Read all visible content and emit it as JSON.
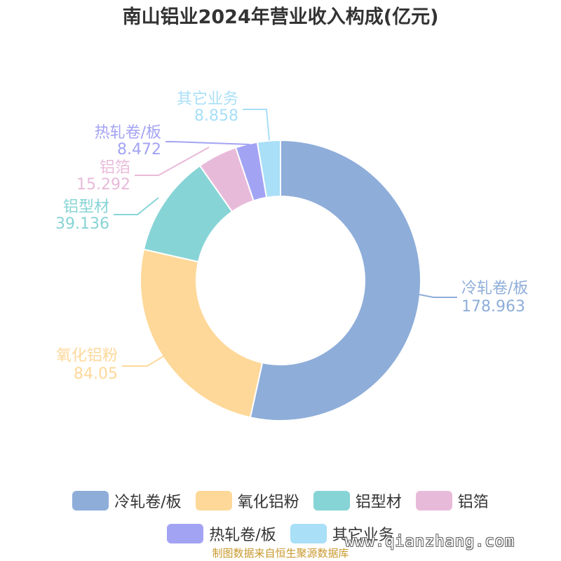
{
  "chart_data": {
    "type": "pie",
    "variant": "donut",
    "title": "南山铝业2024年营业收入构成(亿元)",
    "categories": [
      "冷轧卷/板",
      "氧化铝粉",
      "铝型材",
      "铝箔",
      "热轧卷/板",
      "其它业务"
    ],
    "values": [
      178.963,
      84.05,
      39.136,
      15.292,
      8.472,
      8.858
    ],
    "value_labels": [
      "178.963",
      "84.05",
      "39.136",
      "15.292",
      "8.472",
      "8.858"
    ],
    "colors": [
      "#8eadd9",
      "#fed899",
      "#87d4d6",
      "#e8bada",
      "#a3a3f4",
      "#a9dff7"
    ],
    "legend_position": "bottom",
    "legend_rows": [
      [
        0,
        1,
        2,
        3
      ],
      [
        4,
        5
      ]
    ]
  },
  "source_note": "制图数据来自恒生聚源数据库",
  "watermark": "www.qianzhang.com"
}
